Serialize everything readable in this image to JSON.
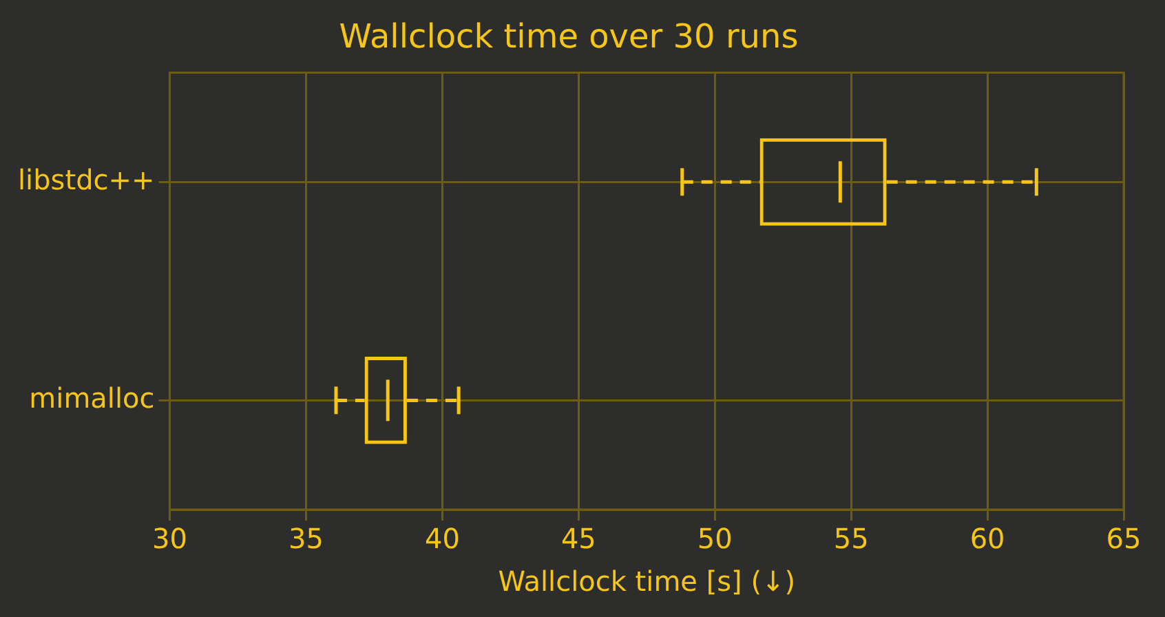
{
  "chart_data": {
    "type": "box",
    "title": "Wallclock time over 30 runs",
    "xlabel": "Wallclock time [s] (↓)",
    "orientation": "horizontal",
    "categories": [
      "libstdc++",
      "mimalloc"
    ],
    "series": [
      {
        "color": "#f5c518",
        "boxes": [
          {
            "low": 48.8,
            "q1": 51.65,
            "median": 54.6,
            "q3": 56.3,
            "high": 61.8
          },
          {
            "low": 36.1,
            "q1": 37.15,
            "median": 38.0,
            "q3": 38.7,
            "high": 40.6
          }
        ]
      }
    ],
    "xlim": [
      30,
      65
    ],
    "xticks": [
      30,
      35,
      40,
      45,
      50,
      55,
      60,
      65
    ],
    "grid": true,
    "line_style": "dashed",
    "legend": false
  }
}
